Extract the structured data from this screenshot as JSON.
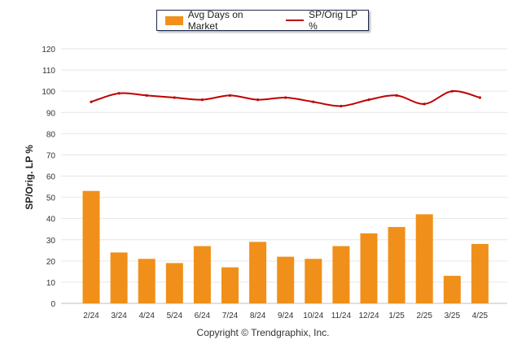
{
  "chart_data": {
    "type": "bar",
    "categories": [
      "2/24",
      "3/24",
      "4/24",
      "5/24",
      "6/24",
      "7/24",
      "8/24",
      "9/24",
      "10/24",
      "11/24",
      "12/24",
      "1/25",
      "2/25",
      "3/25",
      "4/25"
    ],
    "series": [
      {
        "name": "Avg Days on Market",
        "type": "bar",
        "color": "#f0901a",
        "values": [
          53,
          24,
          21,
          19,
          27,
          17,
          29,
          22,
          21,
          27,
          33,
          36,
          42,
          13,
          28
        ]
      },
      {
        "name": "SP/Orig LP %",
        "type": "line",
        "color": "#c00000",
        "values": [
          95,
          99,
          98,
          97,
          96,
          98,
          96,
          97,
          95,
          93,
          96,
          98,
          94,
          100,
          97
        ]
      }
    ],
    "ylabel": "SP/Orig. LP %",
    "xlabel": "",
    "ylim": [
      0,
      120
    ],
    "yticks": [
      0,
      10,
      20,
      30,
      40,
      50,
      60,
      70,
      80,
      90,
      100,
      110,
      120
    ],
    "grid": true,
    "legend_position": "top-center"
  },
  "footer": "Copyright © Trendgraphix, Inc."
}
